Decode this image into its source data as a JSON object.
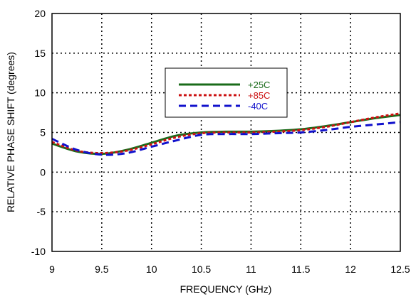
{
  "chart_data": {
    "type": "line",
    "xlabel": "FREQUENCY (GHz)",
    "ylabel": "RELATIVE PHASE SHIFT  (degrees)",
    "xlim": [
      9,
      12.5
    ],
    "ylim": [
      -10,
      20
    ],
    "x_ticks": [
      9,
      9.5,
      10,
      10.5,
      11,
      11.5,
      12,
      12.5
    ],
    "y_ticks": [
      -10,
      -5,
      0,
      5,
      10,
      15,
      20
    ],
    "x_tick_labels": [
      "9",
      "9.5",
      "10",
      "10.5",
      "11",
      "11.5",
      "12",
      "12.5"
    ],
    "y_tick_labels": [
      "-10",
      "-5",
      "0",
      "5",
      "10",
      "15",
      "20"
    ],
    "grid": true,
    "grid_style": "dotted",
    "legend_position": "upper-center",
    "x": [
      9.0,
      9.25,
      9.5,
      9.75,
      10.0,
      10.25,
      10.5,
      10.75,
      11.0,
      11.25,
      11.5,
      11.75,
      12.0,
      12.25,
      12.5
    ],
    "series": [
      {
        "name": "+25C",
        "color": "#1a6b1a",
        "dash": "solid",
        "values": [
          3.6,
          2.6,
          2.3,
          2.8,
          3.7,
          4.6,
          5.0,
          5.1,
          5.1,
          5.2,
          5.4,
          5.8,
          6.3,
          6.8,
          7.2
        ]
      },
      {
        "name": "+85C",
        "color": "#cc1111",
        "dash": "dotted",
        "values": [
          3.8,
          2.7,
          2.4,
          2.7,
          3.5,
          4.4,
          4.9,
          5.0,
          5.0,
          5.1,
          5.3,
          5.7,
          6.3,
          6.9,
          7.4
        ]
      },
      {
        "name": "-40C",
        "color": "#1111cc",
        "dash": "dashed",
        "values": [
          4.2,
          2.8,
          2.2,
          2.4,
          3.2,
          4.0,
          4.7,
          4.8,
          4.8,
          4.9,
          5.0,
          5.3,
          5.7,
          6.0,
          6.3
        ]
      }
    ]
  }
}
